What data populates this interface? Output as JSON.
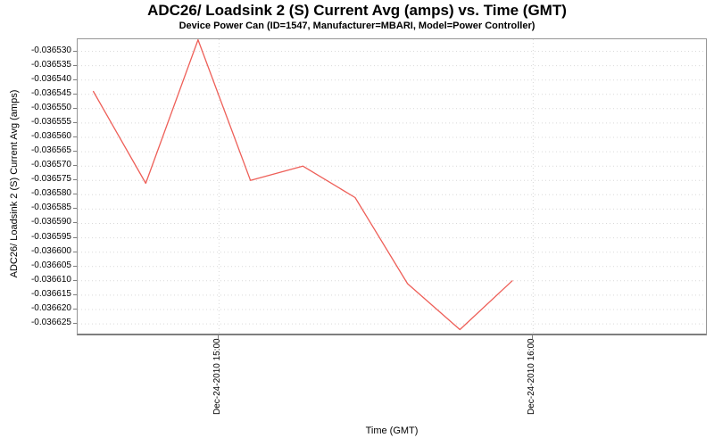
{
  "chart_data": {
    "type": "line",
    "title": "ADC26/ Loadsink 2 (S) Current Avg (amps) vs. Time (GMT)",
    "subtitle": "Device Power Can (ID=1547, Manufacturer=MBARI, Model=Power Controller)",
    "xlabel": "Time (GMT)",
    "ylabel": "ADC26/ Loadsink 2 (S) Current Avg (amps)",
    "legend_position": "none",
    "grid": {
      "horizontal": true,
      "vertical": true,
      "style": "dotted",
      "color": "#d9d9d9"
    },
    "line_color": "#ee5f58",
    "plot_border_color": "#969696",
    "background_color": "#ffffff",
    "x_axis": {
      "range_hours": [
        14.55,
        16.55
      ],
      "ticks": [
        {
          "label": "Dec-24-2010 15:00",
          "hour": 15.0
        },
        {
          "label": "Dec-24-2010 16:00",
          "hour": 16.0
        }
      ]
    },
    "y_axis": {
      "range": [
        -0.0366284,
        -0.0365258
      ],
      "ticks": [
        "-0.036530",
        "-0.036535",
        "-0.036540",
        "-0.036545",
        "-0.036550",
        "-0.036555",
        "-0.036560",
        "-0.036565",
        "-0.036570",
        "-0.036575",
        "-0.036580",
        "-0.036585",
        "-0.036590",
        "-0.036595",
        "-0.036600",
        "-0.036605",
        "-0.036610",
        "-0.036615",
        "-0.036620",
        "-0.036625"
      ]
    },
    "series": [
      {
        "name": "ADC26/ Loadsink 2 (S) Current Avg (amps)",
        "points": [
          {
            "time": "14:36",
            "value": -0.036544
          },
          {
            "time": "14:46",
            "value": -0.036576
          },
          {
            "time": "14:56",
            "value": -0.036526
          },
          {
            "time": "15:06",
            "value": -0.036575
          },
          {
            "time": "15:16",
            "value": -0.03657
          },
          {
            "time": "15:26",
            "value": -0.036581
          },
          {
            "time": "15:36",
            "value": -0.036611
          },
          {
            "time": "15:46",
            "value": -0.036627
          },
          {
            "time": "15:56",
            "value": -0.03661
          }
        ]
      }
    ]
  }
}
